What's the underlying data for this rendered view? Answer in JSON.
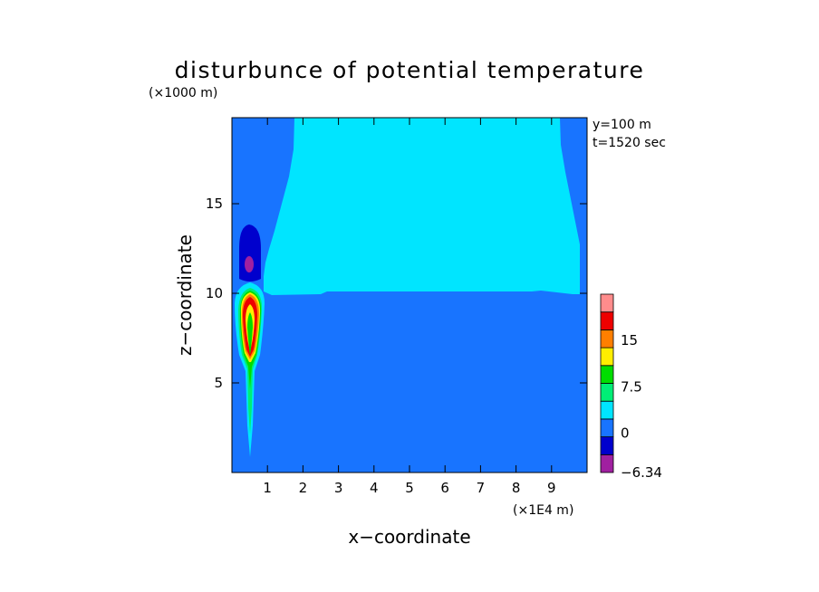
{
  "chart_data": {
    "type": "heatmap",
    "title": "disturbunce of potential temperature",
    "xlabel": "x−coordinate",
    "ylabel": "z−coordinate",
    "x_unit": "(×1E4 m)",
    "y_unit": "(×1000 m)",
    "xlim": [
      0,
      10
    ],
    "ylim": [
      0,
      19.8
    ],
    "x_ticks": [
      "1",
      "2",
      "3",
      "4",
      "5",
      "6",
      "7",
      "8",
      "9"
    ],
    "x_tick_values": [
      1,
      2,
      3,
      4,
      5,
      6,
      7,
      8,
      9
    ],
    "y_ticks": [
      "5",
      "10",
      "15"
    ],
    "y_tick_values": [
      5,
      10,
      15
    ],
    "annotations": [
      "y=100 m",
      "t=1520 sec"
    ],
    "colorbar": {
      "range": [
        -6.34,
        22.5
      ],
      "tick_labels": [
        "15",
        "7.5",
        "0",
        "−6.34"
      ],
      "tick_values": [
        15,
        7.5,
        0,
        -6.34
      ],
      "levels": [
        -6.34,
        -3.75,
        0,
        3.75,
        7.5,
        11.25,
        15,
        18.75,
        22.5
      ],
      "colors": [
        "#a020a0",
        "#0000cd",
        "#1874ff",
        "#00e5ff",
        "#00ee76",
        "#00dd00",
        "#ffee00",
        "#ff7f00",
        "#ee0000",
        "#ff8c8c"
      ]
    },
    "fields": [
      {
        "name": "ambient",
        "color": "#1874ff"
      },
      {
        "name": "upper-warm-layer",
        "color": "#00e5ff"
      },
      {
        "name": "cold-anomaly",
        "color": "#0000cd",
        "min_color": "#a020a0"
      },
      {
        "name": "warm-plume",
        "colors": [
          "#00e5ff",
          "#00ee76",
          "#00dd00",
          "#ffee00",
          "#ff7f00",
          "#ee0000"
        ]
      }
    ]
  }
}
